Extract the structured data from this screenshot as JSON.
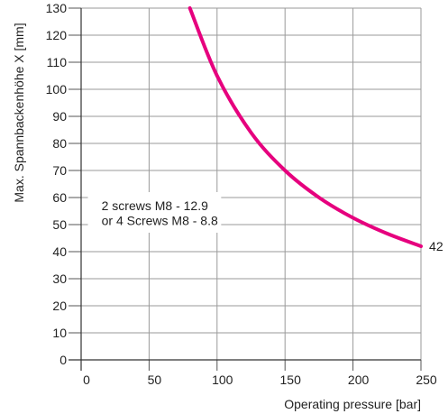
{
  "chart_data": {
    "type": "line",
    "xlabel": "Operating pressure [bar]",
    "ylabel": "Max. Spannbackenhöhe X [mm]",
    "xlim": [
      0,
      250
    ],
    "ylim": [
      0,
      130
    ],
    "x_ticks": [
      0,
      50,
      100,
      150,
      200,
      250
    ],
    "y_ticks": [
      0,
      10,
      20,
      30,
      40,
      50,
      60,
      70,
      80,
      90,
      100,
      110,
      120,
      130
    ],
    "grid": true,
    "series": [
      {
        "color": "#e6007e",
        "x": [
          80,
          100,
          125,
          150,
          175,
          200,
          225,
          250
        ],
        "y": [
          131,
          105,
          84,
          70,
          60,
          52.5,
          46.7,
          42
        ]
      }
    ],
    "annotations": [
      {
        "text": "2 screws M8 - 12.9",
        "x": 15,
        "y": 57
      },
      {
        "text": "or 4 Screws M8 - 8.8",
        "x": 15,
        "y": 51.5
      },
      {
        "text": "42",
        "x": 256,
        "y": 42
      }
    ]
  }
}
